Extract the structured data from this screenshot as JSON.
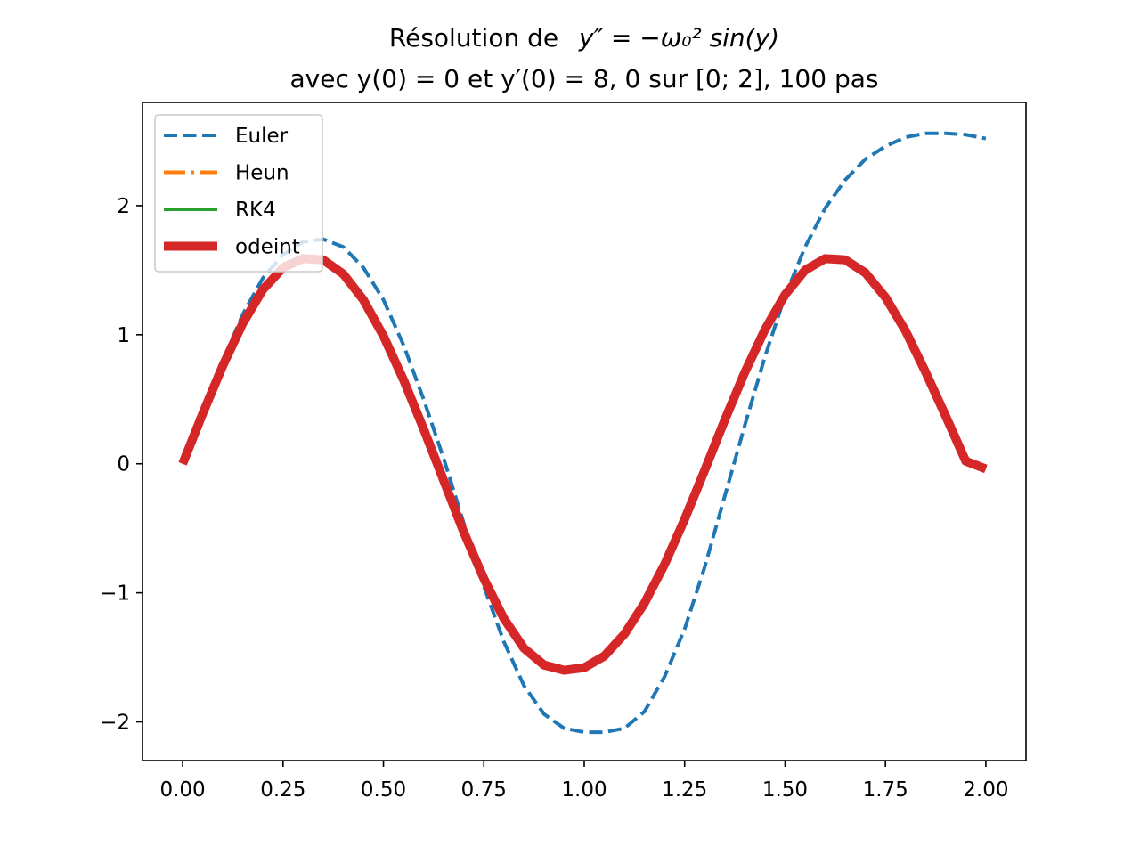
{
  "chart_data": {
    "type": "line",
    "title_line1_prefix": "Résolution de",
    "title_line1_math": "y″ = −ω₀² sin(y)",
    "title_line2": "avec y(0) = 0 et y′(0) = 8, 0 sur [0; 2], 100 pas",
    "xlim": [
      -0.1,
      2.1
    ],
    "ylim": [
      -2.3,
      2.8
    ],
    "xticks": [
      0.0,
      0.25,
      0.5,
      0.75,
      1.0,
      1.25,
      1.5,
      1.75,
      2.0
    ],
    "xtick_labels": [
      "0.00",
      "0.25",
      "0.50",
      "0.75",
      "1.00",
      "1.25",
      "1.50",
      "1.75",
      "2.00"
    ],
    "yticks": [
      -2,
      -1,
      0,
      1,
      2
    ],
    "ytick_labels": [
      "−2",
      "−1",
      "0",
      "1",
      "2"
    ],
    "grid": false,
    "legend_position": "top-left",
    "series": [
      {
        "name": "Euler",
        "style": "dashed",
        "color": "#1f77b4",
        "x": [
          0.0,
          0.05,
          0.1,
          0.15,
          0.2,
          0.25,
          0.3,
          0.35,
          0.4,
          0.45,
          0.5,
          0.55,
          0.6,
          0.65,
          0.7,
          0.75,
          0.8,
          0.85,
          0.9,
          0.95,
          1.0,
          1.05,
          1.1,
          1.15,
          1.2,
          1.25,
          1.3,
          1.35,
          1.4,
          1.45,
          1.5,
          1.55,
          1.6,
          1.65,
          1.7,
          1.75,
          1.8,
          1.85,
          1.9,
          1.95,
          2.0
        ],
        "y": [
          0.0,
          0.4,
          0.8,
          1.16,
          1.44,
          1.62,
          1.72,
          1.74,
          1.68,
          1.52,
          1.27,
          0.92,
          0.5,
          0.04,
          -0.46,
          -0.95,
          -1.38,
          -1.72,
          -1.94,
          -2.05,
          -2.08,
          -2.08,
          -2.05,
          -1.92,
          -1.65,
          -1.28,
          -0.8,
          -0.25,
          0.3,
          0.83,
          1.3,
          1.68,
          1.98,
          2.2,
          2.36,
          2.46,
          2.53,
          2.56,
          2.56,
          2.55,
          2.52
        ]
      },
      {
        "name": "Heun",
        "style": "dashdot",
        "color": "#ff7f0e",
        "x": [
          0.0,
          0.05,
          0.1,
          0.15,
          0.2,
          0.25,
          0.3,
          0.35,
          0.4,
          0.45,
          0.5,
          0.55,
          0.6,
          0.65,
          0.7,
          0.75,
          0.8,
          0.85,
          0.9,
          0.95,
          1.0,
          1.05,
          1.1,
          1.15,
          1.2,
          1.25,
          1.3,
          1.35,
          1.4,
          1.45,
          1.5,
          1.55,
          1.6,
          1.65,
          1.7,
          1.75,
          1.8,
          1.85,
          1.9,
          1.95,
          2.0
        ],
        "y": [
          0.0,
          0.39,
          0.76,
          1.09,
          1.35,
          1.52,
          1.59,
          1.58,
          1.47,
          1.27,
          0.99,
          0.65,
          0.27,
          -0.13,
          -0.53,
          -0.89,
          -1.2,
          -1.43,
          -1.56,
          -1.6,
          -1.58,
          -1.49,
          -1.32,
          -1.08,
          -0.78,
          -0.43,
          -0.05,
          0.34,
          0.71,
          1.04,
          1.31,
          1.5,
          1.59,
          1.58,
          1.48,
          1.29,
          1.03,
          0.71,
          0.37,
          0.02,
          -0.04
        ]
      },
      {
        "name": "RK4",
        "style": "solid",
        "color": "#2ca02c",
        "x": [
          0.0,
          0.05,
          0.1,
          0.15,
          0.2,
          0.25,
          0.3,
          0.35,
          0.4,
          0.45,
          0.5,
          0.55,
          0.6,
          0.65,
          0.7,
          0.75,
          0.8,
          0.85,
          0.9,
          0.95,
          1.0,
          1.05,
          1.1,
          1.15,
          1.2,
          1.25,
          1.3,
          1.35,
          1.4,
          1.45,
          1.5,
          1.55,
          1.6,
          1.65,
          1.7,
          1.75,
          1.8,
          1.85,
          1.9,
          1.95,
          2.0
        ],
        "y": [
          0.0,
          0.39,
          0.76,
          1.09,
          1.35,
          1.52,
          1.59,
          1.58,
          1.47,
          1.27,
          0.99,
          0.65,
          0.27,
          -0.13,
          -0.53,
          -0.89,
          -1.2,
          -1.43,
          -1.56,
          -1.6,
          -1.58,
          -1.49,
          -1.32,
          -1.08,
          -0.78,
          -0.43,
          -0.05,
          0.34,
          0.71,
          1.04,
          1.31,
          1.5,
          1.59,
          1.58,
          1.48,
          1.29,
          1.03,
          0.71,
          0.37,
          0.02,
          -0.04
        ]
      },
      {
        "name": "odeint",
        "style": "solid-thick",
        "color": "#d62728",
        "x": [
          0.0,
          0.05,
          0.1,
          0.15,
          0.2,
          0.25,
          0.3,
          0.35,
          0.4,
          0.45,
          0.5,
          0.55,
          0.6,
          0.65,
          0.7,
          0.75,
          0.8,
          0.85,
          0.9,
          0.95,
          1.0,
          1.05,
          1.1,
          1.15,
          1.2,
          1.25,
          1.3,
          1.35,
          1.4,
          1.45,
          1.5,
          1.55,
          1.6,
          1.65,
          1.7,
          1.75,
          1.8,
          1.85,
          1.9,
          1.95,
          2.0
        ],
        "y": [
          0.0,
          0.39,
          0.76,
          1.09,
          1.35,
          1.52,
          1.59,
          1.58,
          1.47,
          1.27,
          0.99,
          0.65,
          0.27,
          -0.13,
          -0.53,
          -0.89,
          -1.2,
          -1.43,
          -1.56,
          -1.6,
          -1.58,
          -1.49,
          -1.32,
          -1.08,
          -0.78,
          -0.43,
          -0.05,
          0.34,
          0.71,
          1.04,
          1.31,
          1.5,
          1.59,
          1.58,
          1.48,
          1.29,
          1.03,
          0.71,
          0.37,
          0.02,
          -0.04
        ]
      }
    ]
  }
}
